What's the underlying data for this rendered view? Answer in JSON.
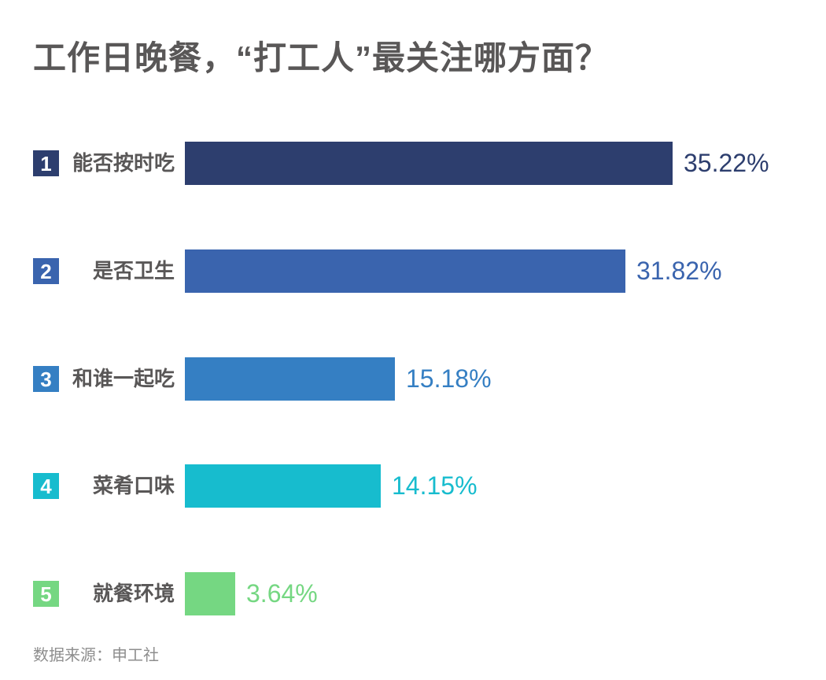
{
  "chart_data": {
    "type": "bar",
    "orientation": "horizontal",
    "title": "工作日晚餐，“打工人”最关注哪方面？",
    "categories": [
      "能否按时吃",
      "是否卫生",
      "和谁一起吃",
      "菜肴口味",
      "就餐环境"
    ],
    "values": [
      35.22,
      31.82,
      15.18,
      14.15,
      3.64
    ],
    "value_labels": [
      "35.22%",
      "31.82%",
      "15.18%",
      "14.15%",
      "3.64%"
    ],
    "ranks": [
      "1",
      "2",
      "3",
      "4",
      "5"
    ],
    "colors": [
      "#2d3e6e",
      "#3a64ae",
      "#357fc3",
      "#17bcce",
      "#75d782"
    ],
    "source": "数据来源：申工社",
    "xlim": [
      0,
      37
    ],
    "grid": false,
    "legend": "none",
    "title_color": "#595757",
    "label_color": "#595757",
    "source_color": "#8e8e8e"
  }
}
